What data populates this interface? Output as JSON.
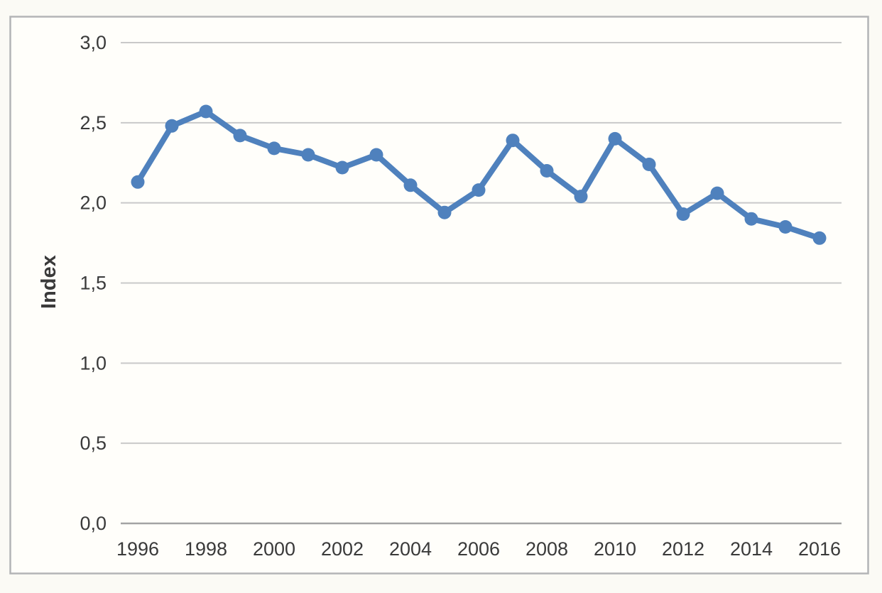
{
  "page": {
    "background": "#fbfaf5",
    "frame_fill": "#fffefa",
    "frame_border_color": "#b3b4b6"
  },
  "chart_data": {
    "type": "line",
    "title": "",
    "xlabel": "",
    "ylabel": "Index",
    "x": [
      1996,
      1997,
      1998,
      1999,
      2000,
      2001,
      2002,
      2003,
      2004,
      2005,
      2006,
      2007,
      2008,
      2009,
      2010,
      2011,
      2012,
      2013,
      2014,
      2015,
      2016
    ],
    "series": [
      {
        "name": "Index",
        "values": [
          2.13,
          2.48,
          2.57,
          2.42,
          2.34,
          2.3,
          2.22,
          2.3,
          2.11,
          1.94,
          2.08,
          2.39,
          2.2,
          2.04,
          2.4,
          2.24,
          1.93,
          2.06,
          1.9,
          1.85,
          1.78
        ]
      }
    ],
    "ylim": [
      0,
      3
    ],
    "ytick_values": [
      0,
      0.5,
      1,
      1.5,
      2,
      2.5,
      3
    ],
    "ytick_labels": [
      "0,0",
      "0,5",
      "1,0",
      "1,5",
      "2,0",
      "2,5",
      "3,0"
    ],
    "xtick_years": [
      1996,
      1998,
      2000,
      2002,
      2004,
      2006,
      2008,
      2010,
      2012,
      2014,
      2016
    ],
    "decimal_separator": ",",
    "grid": "horizontal",
    "legend": "none",
    "line_color": "#4f81bd",
    "marker": "circle",
    "grid_color": "#c9c9c9",
    "axis_color": "#a3a3a3",
    "text_color": "#3a3a3a"
  }
}
